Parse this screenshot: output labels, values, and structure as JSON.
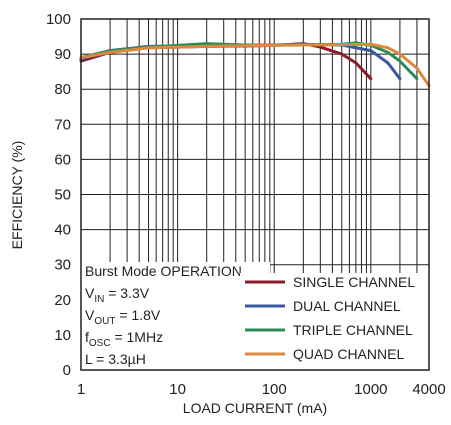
{
  "chart_data": {
    "type": "line",
    "title": "",
    "xlabel": "LOAD CURRENT (mA)",
    "ylabel": "EFFICIENCY (%)",
    "xscale": "log",
    "xlim": [
      1,
      4000
    ],
    "ylim": [
      0,
      100
    ],
    "x_tick_labels": [
      {
        "value": 1,
        "label": "1"
      },
      {
        "value": 10,
        "label": "10"
      },
      {
        "value": 100,
        "label": "100"
      },
      {
        "value": 1000,
        "label": "1000"
      },
      {
        "value": 4000,
        "label": "4000"
      }
    ],
    "y_tick_labels": [
      {
        "value": 0,
        "label": "0"
      },
      {
        "value": 10,
        "label": "10"
      },
      {
        "value": 20,
        "label": "20"
      },
      {
        "value": 30,
        "label": "30"
      },
      {
        "value": 40,
        "label": "40"
      },
      {
        "value": 50,
        "label": "50"
      },
      {
        "value": 60,
        "label": "60"
      },
      {
        "value": 70,
        "label": "70"
      },
      {
        "value": 80,
        "label": "80"
      },
      {
        "value": 90,
        "label": "90"
      },
      {
        "value": 100,
        "label": "100"
      }
    ],
    "grid": true,
    "legend_position": "bottom-right",
    "annotation_lines": [
      {
        "text": "Burst Mode OPERATION"
      },
      {
        "main": "V",
        "sub": "IN",
        "rest": " = 3.3V"
      },
      {
        "main": "V",
        "sub": "OUT",
        "rest": " = 1.8V"
      },
      {
        "main": "f",
        "sub": "OSC",
        "rest": " = 1MHz"
      },
      {
        "text": "L = 3.3µH"
      }
    ],
    "series": [
      {
        "name": "SINGLE CHANNEL",
        "color": "#8b1a2b",
        "x": [
          1,
          2,
          5,
          10,
          20,
          50,
          100,
          200,
          300,
          500,
          700,
          1000
        ],
        "y": [
          88.0,
          90.5,
          91.8,
          92.0,
          92.2,
          92.3,
          92.5,
          93.0,
          92.0,
          90.0,
          87.5,
          83.0
        ]
      },
      {
        "name": "DUAL CHANNEL",
        "color": "#3a58a0",
        "x": [
          1,
          2,
          5,
          10,
          20,
          50,
          100,
          200,
          500,
          1000,
          1500,
          2000
        ],
        "y": [
          88.5,
          91.0,
          92.2,
          92.3,
          92.5,
          92.6,
          92.6,
          92.8,
          92.6,
          91.0,
          87.5,
          83.0
        ]
      },
      {
        "name": "TRIPLE CHANNEL",
        "color": "#2e8b57",
        "x": [
          1,
          2,
          5,
          10,
          20,
          50,
          100,
          200,
          500,
          700,
          1000,
          1500,
          2000,
          3000
        ],
        "y": [
          89.0,
          91.0,
          92.0,
          92.5,
          93.0,
          92.6,
          92.6,
          92.6,
          92.8,
          93.2,
          92.5,
          90.5,
          88.0,
          83.0
        ]
      },
      {
        "name": "QUAD CHANNEL",
        "color": "#d98a3c",
        "x": [
          1,
          2,
          5,
          10,
          20,
          50,
          100,
          200,
          500,
          1000,
          1500,
          2000,
          3000,
          4000
        ],
        "y": [
          89.0,
          90.5,
          91.8,
          92.0,
          92.2,
          92.4,
          92.5,
          92.6,
          92.7,
          92.8,
          91.8,
          90.0,
          86.0,
          81.0
        ]
      }
    ]
  }
}
